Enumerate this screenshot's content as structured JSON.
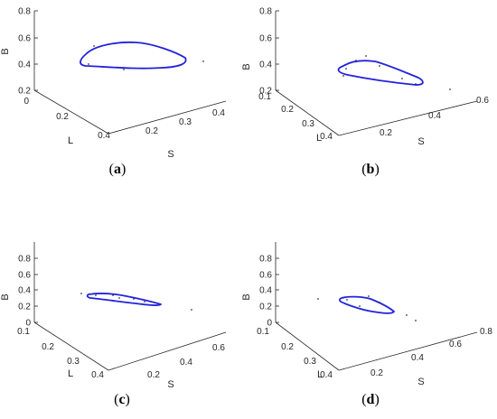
{
  "chart_data": [
    {
      "type": "scatter",
      "caption": "a",
      "xlabel": "L",
      "ylabel": "S",
      "zlabel": "B",
      "z_ticks": [
        "0.2",
        "0.4",
        "0.6",
        "0.8"
      ],
      "l_ticks": [
        "0",
        "0.2",
        "0.4"
      ],
      "s_ticks": [
        "0.2",
        "0.3",
        "0.4"
      ],
      "contour_color": "#2222dd"
    },
    {
      "type": "scatter",
      "caption": "b",
      "xlabel": "L",
      "ylabel": "S",
      "zlabel": "B",
      "z_ticks": [
        "0.2",
        "0.4",
        "0.6",
        "0.8"
      ],
      "l_ticks": [
        "0.1",
        "0.2",
        "0.3",
        "0.4"
      ],
      "s_ticks": [
        "0.2",
        "0.4",
        "0.6"
      ],
      "contour_color": "#2222dd"
    },
    {
      "type": "scatter",
      "caption": "c",
      "xlabel": "L",
      "ylabel": "S",
      "zlabel": "B",
      "z_ticks": [
        "0",
        "0.2",
        "0.4",
        "0.6",
        "0.8"
      ],
      "l_ticks": [
        "0.1",
        "0.2",
        "0.3",
        "0.4"
      ],
      "s_ticks": [
        "0.2",
        "0.4",
        "0.6"
      ],
      "contour_color": "#2222dd"
    },
    {
      "type": "scatter",
      "caption": "d",
      "xlabel": "L",
      "ylabel": "S",
      "zlabel": "B",
      "z_ticks": [
        "0",
        "0.2",
        "0.4",
        "0.6",
        "0.8"
      ],
      "l_ticks": [
        "0.1",
        "0.2",
        "0.3",
        "0.4"
      ],
      "s_ticks": [
        "0.2",
        "0.4",
        "0.6",
        "0.8"
      ],
      "contour_color": "#2222dd"
    }
  ]
}
